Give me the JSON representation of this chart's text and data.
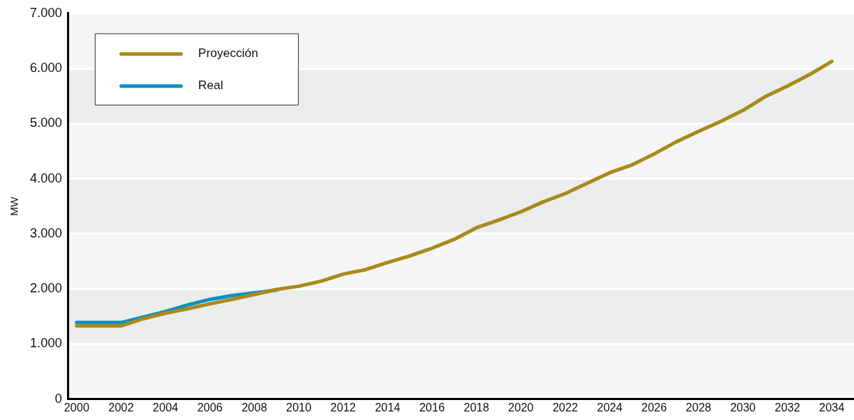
{
  "chart_data": {
    "type": "line",
    "ylabel": "MW",
    "xlim": [
      1999.6,
      2035
    ],
    "xticks": [
      2000,
      2002,
      2004,
      2006,
      2008,
      2010,
      2012,
      2014,
      2016,
      2018,
      2020,
      2022,
      2024,
      2026,
      2028,
      2030,
      2032,
      2034
    ],
    "ylim": [
      0,
      7000
    ],
    "yticks": [
      0,
      {
        "value": 1000,
        "label": "1.000"
      },
      {
        "value": 2000,
        "label": "2.000"
      },
      {
        "value": 3000,
        "label": "3.000"
      },
      {
        "value": 4000,
        "label": "4.000"
      },
      {
        "value": 5000,
        "label": "5.000"
      },
      {
        "value": 6000,
        "label": "6.000"
      },
      {
        "value": 7000,
        "label": "7.000"
      }
    ],
    "grid": "y",
    "legend": "top left",
    "marker": "none",
    "line_style": "solid",
    "series": [
      {
        "name": "Proyección",
        "color": "#a88a1a",
        "x": [
          2000,
          2001,
          2002,
          2003,
          2004,
          2005,
          2006,
          2007,
          2008,
          2009,
          2010,
          2011,
          2012,
          2013,
          2014,
          2015,
          2016,
          2017,
          2018,
          2019,
          2020,
          2021,
          2022,
          2023,
          2024,
          2025,
          2026,
          2027,
          2028,
          2029,
          2030,
          2031,
          2032,
          2033,
          2034
        ],
        "values": [
          1330,
          1330,
          1330,
          1460,
          1560,
          1640,
          1730,
          1810,
          1900,
          1990,
          2050,
          2140,
          2270,
          2350,
          2480,
          2600,
          2740,
          2900,
          3110,
          3250,
          3400,
          3580,
          3730,
          3920,
          4110,
          4250,
          4450,
          4670,
          4860,
          5040,
          5240,
          5490,
          5680,
          5890,
          6130
        ]
      },
      {
        "name": "Real",
        "color": "#0a8fc2",
        "x": [
          2000,
          2001,
          2002,
          2003,
          2004,
          2005,
          2006,
          2007,
          2008,
          2009
        ],
        "values": [
          1390,
          1390,
          1390,
          1490,
          1590,
          1710,
          1810,
          1880,
          1930,
          1980
        ]
      }
    ]
  }
}
